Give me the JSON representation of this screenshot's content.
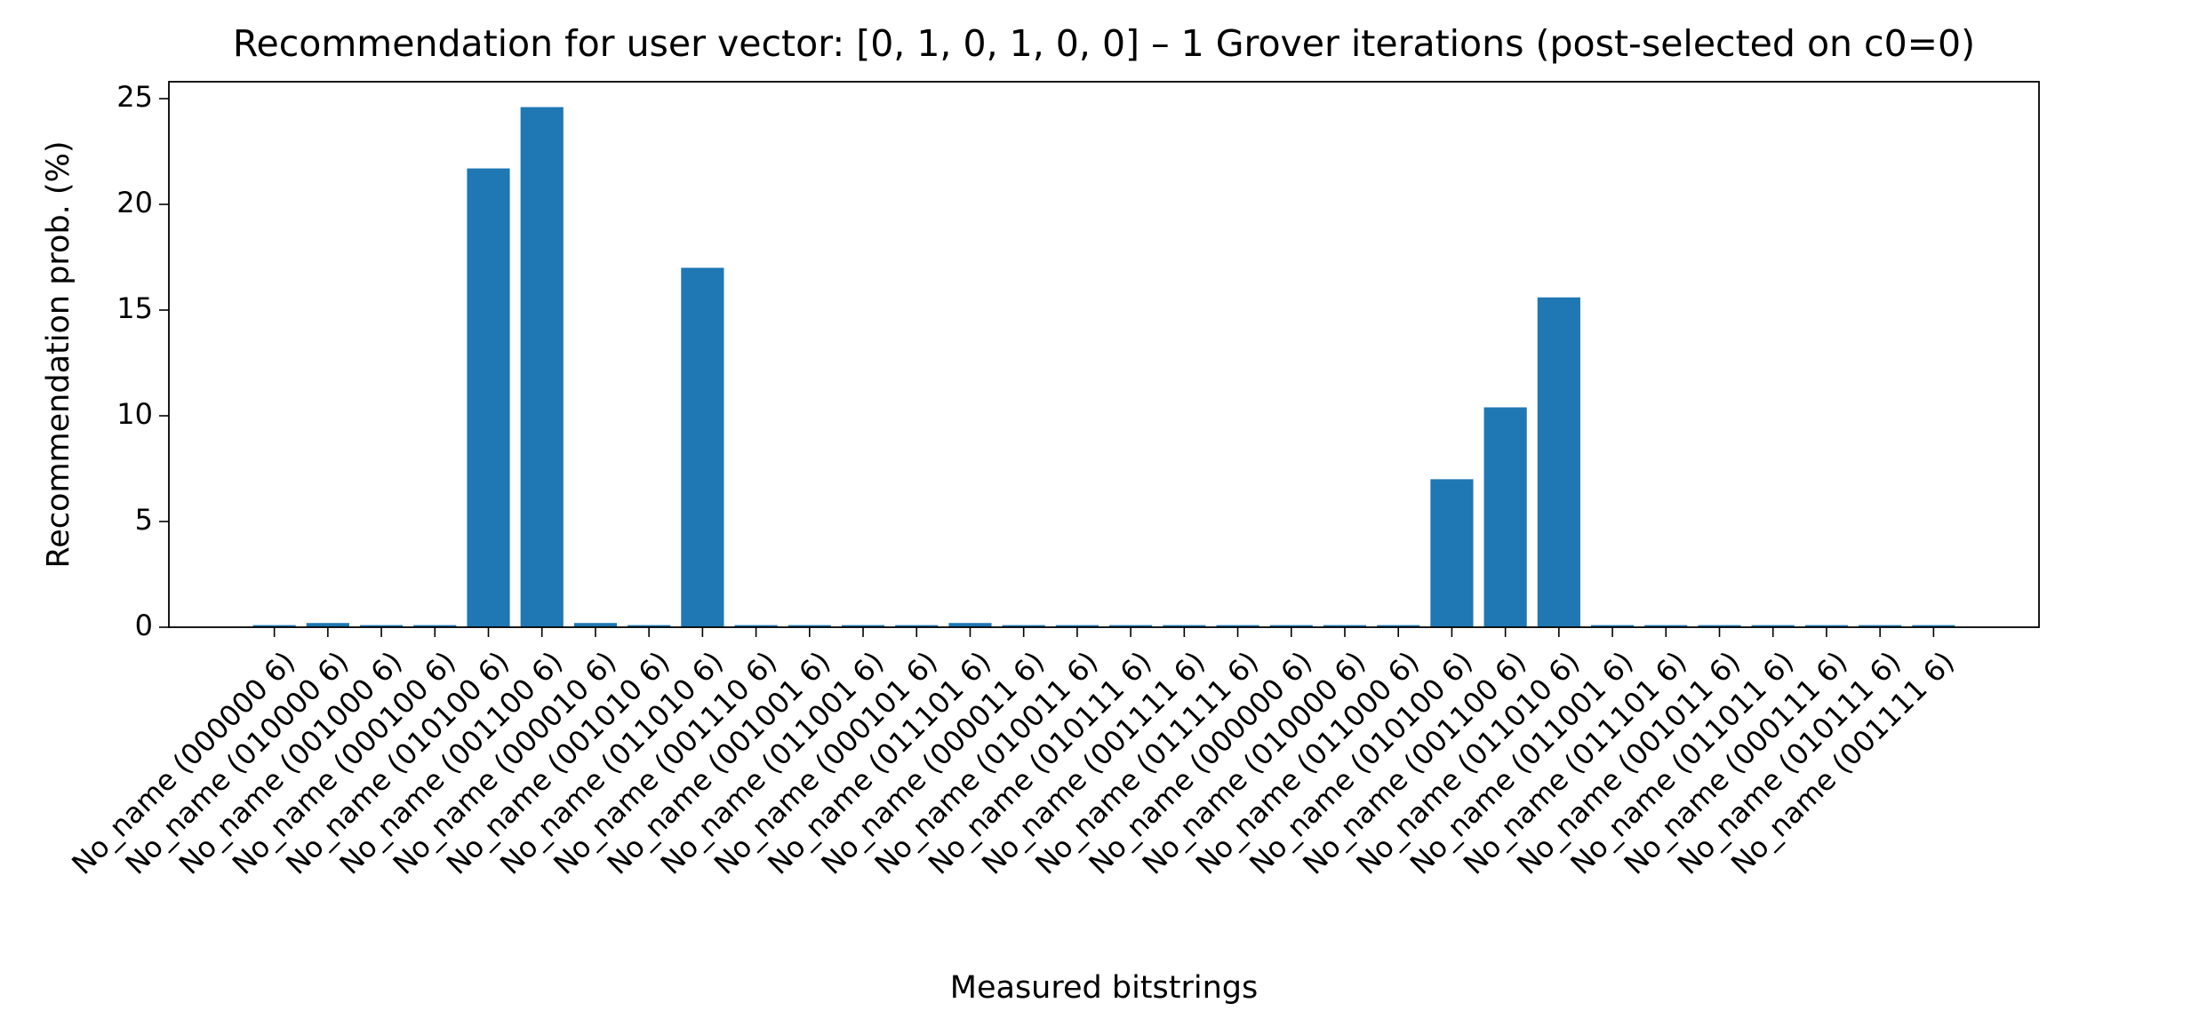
{
  "chart_data": {
    "type": "bar",
    "title": "Recommendation for user vector: [0, 1, 0, 1, 0, 0]  –  1 Grover iterations (post-selected on c0=0)",
    "x_label": "Measured bitstrings",
    "y_label": "Recommendation prob. (%)",
    "categories": [
      "No_name (000000 6)",
      "No_name (010000 6)",
      "No_name (001000 6)",
      "No_name (000100 6)",
      "No_name (010100 6)",
      "No_name (001100 6)",
      "No_name (000010 6)",
      "No_name (001010 6)",
      "No_name (011010 6)",
      "No_name (001110 6)",
      "No_name (001001 6)",
      "No_name (011001 6)",
      "No_name (000101 6)",
      "No_name (011101 6)",
      "No_name (000011 6)",
      "No_name (010011 6)",
      "No_name (010111 6)",
      "No_name (001111 6)",
      "No_name (011111 6)",
      "No_name (000000 6)",
      "No_name (010000 6)",
      "No_name (011000 6)",
      "No_name (010100 6)",
      "No_name (001100 6)",
      "No_name (011010 6)",
      "No_name (011001 6)",
      "No_name (011101 6)",
      "No_name (001011 6)",
      "No_name (011011 6)",
      "No_name (000111 6)",
      "No_name (010111 6)",
      "No_name (001111 6)"
    ],
    "values": [
      0.1,
      0.2,
      0.1,
      0.1,
      21.7,
      24.6,
      0.2,
      0.1,
      17.0,
      0.1,
      0.1,
      0.1,
      0.1,
      0.2,
      0.1,
      0.1,
      0.1,
      0.1,
      0.1,
      0.1,
      0.1,
      0.1,
      7.0,
      10.4,
      15.6,
      0.1,
      0.1,
      0.1,
      0.1,
      0.1,
      0.1,
      0.1
    ],
    "color": "#1f77b4",
    "ylim": [
      0,
      25.8
    ],
    "yticks": [
      0,
      5,
      10,
      15,
      20,
      25
    ],
    "grid": false
  }
}
